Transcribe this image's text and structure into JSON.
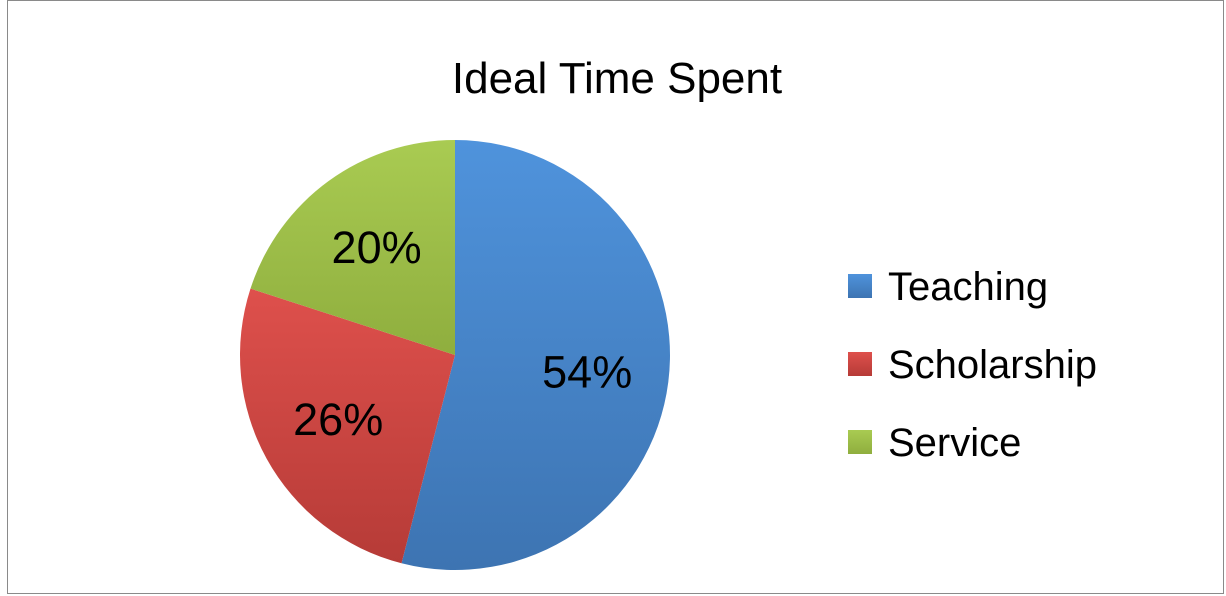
{
  "chart_data": {
    "type": "pie",
    "title": "Ideal Time Spent",
    "categories": [
      "Teaching",
      "Scholarship",
      "Service"
    ],
    "values": [
      54,
      26,
      20
    ],
    "data_labels": [
      "54%",
      "26%",
      "20%"
    ],
    "colors": [
      "#4a86c8",
      "#c9423f",
      "#9bbb44"
    ],
    "start_angle": "12 o'clock, clockwise",
    "legend": {
      "placement": "right",
      "items": [
        "Teaching",
        "Scholarship",
        "Service"
      ]
    }
  }
}
